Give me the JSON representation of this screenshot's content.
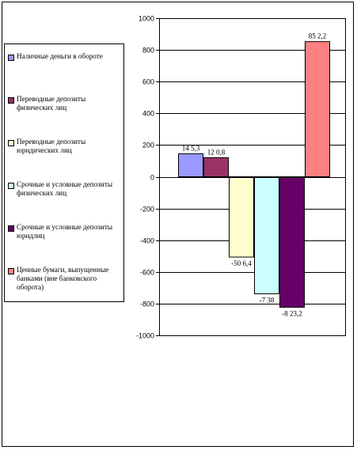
{
  "chart_data": {
    "type": "bar",
    "title": "",
    "xlabel": "",
    "ylabel": "",
    "ylim": [
      -1000,
      1000
    ],
    "ytick_step": 200,
    "grid": true,
    "legend_position": "left",
    "series": [
      {
        "name": "Наличные деньги в обороте",
        "value": 145.3,
        "label": "14 5,3",
        "color": "#9999ff"
      },
      {
        "name": "Переводные депозиты физических лиц",
        "value": 120.8,
        "label": "12 0,8",
        "color": "#993366"
      },
      {
        "name": "Переводные депозиты юридических лиц",
        "value": -506.4,
        "label": "-50 6,4",
        "color": "#ffffcc"
      },
      {
        "name": "Срочные и условные депозиты физических лиц",
        "value": -738,
        "label": "-7 38",
        "color": "#ccffff"
      },
      {
        "name": "Срочные и условные депозиты юридлиц",
        "value": -823.2,
        "label": "-8 23,2",
        "color": "#660066"
      },
      {
        "name": "Ценные бумаги, выпущенные банками (вне банковского оборота)",
        "value": 852.2,
        "label": "85 2,2",
        "color": "#ff8080"
      }
    ]
  }
}
